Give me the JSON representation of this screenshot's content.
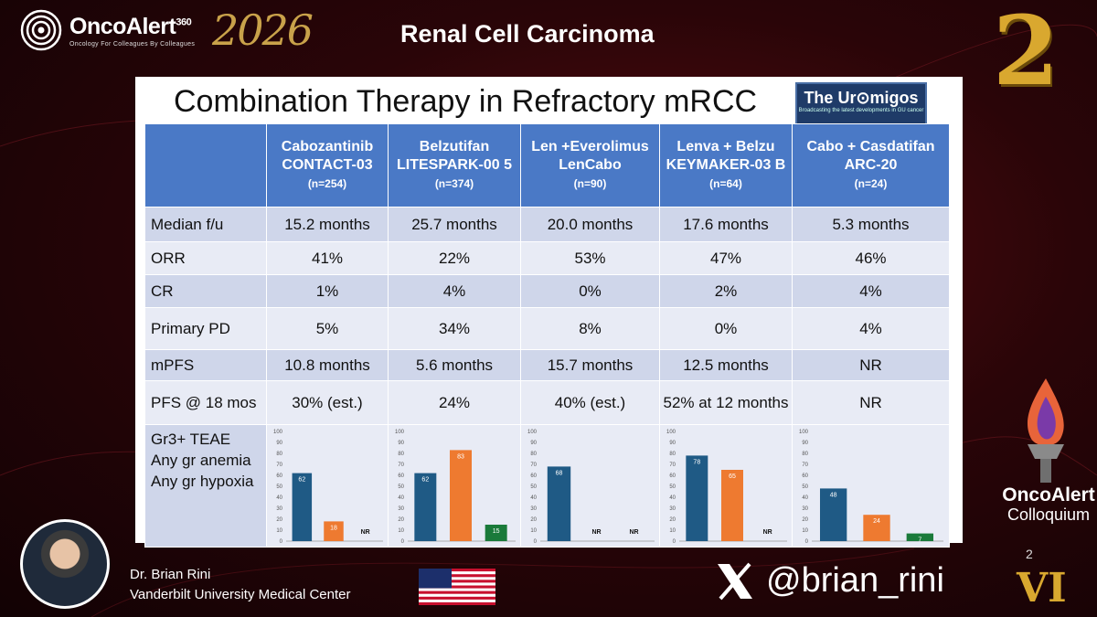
{
  "header": {
    "brand": "OncoAlert",
    "brand_sup": "360",
    "brand_tagline": "Oncology   For Colleagues   By Colleagues",
    "year": "2026",
    "title": "Renal Cell Carcinoma",
    "edition_number": "2"
  },
  "slide": {
    "title": "Combination Therapy in Refractory mRCC",
    "badge_name": "The Ur⊙migos",
    "badge_tagline": "Broadcasting the latest developments in GU cancer",
    "columns": [
      {
        "name": "Cabozantinib CONTACT-03",
        "n": "(n=254)"
      },
      {
        "name": "Belzutifan LITESPARK-00 5",
        "n": "(n=374)"
      },
      {
        "name": "Len +Everolimus LenCabo",
        "n": "(n=90)"
      },
      {
        "name": "Lenva + Belzu KEYMAKER-03 B",
        "n": "(n=64)"
      },
      {
        "name": "Cabo + Casdatifan ARC-20",
        "n": "(n=24)"
      }
    ],
    "rows": [
      {
        "label": "Median f/u",
        "values": [
          "15.2 months",
          "25.7 months",
          "20.0 months",
          "17.6 months",
          "5.3 months"
        ]
      },
      {
        "label": "ORR",
        "values": [
          "41%",
          "22%",
          "53%",
          "47%",
          "46%"
        ]
      },
      {
        "label": "CR",
        "values": [
          "1%",
          "4%",
          "0%",
          "2%",
          "4%"
        ]
      },
      {
        "label": "Primary PD",
        "values": [
          "5%",
          "34%",
          "8%",
          "0%",
          "4%"
        ]
      },
      {
        "label": "mPFS",
        "values": [
          "10.8 months",
          "5.6 months",
          "15.7 months",
          "12.5 months",
          "NR"
        ]
      },
      {
        "label": "PFS @ 18 mos",
        "values": [
          "30% (est.)",
          "24%",
          "40% (est.)",
          "52% at 12 months",
          "NR"
        ]
      }
    ],
    "last_row_label": [
      "Gr3+ TEAE",
      "Any gr anemia",
      "Any gr hypoxia"
    ]
  },
  "chart_data": [
    {
      "type": "bar",
      "categories": [
        "Gr3+ TEAE",
        "Any gr anemia",
        "Any gr hypoxia"
      ],
      "values": [
        62,
        18,
        null
      ],
      "labels": [
        "62",
        "18",
        "NR"
      ],
      "ylim": [
        0,
        100
      ]
    },
    {
      "type": "bar",
      "categories": [
        "Gr3+ TEAE",
        "Any gr anemia",
        "Any gr hypoxia"
      ],
      "values": [
        62,
        83,
        15
      ],
      "labels": [
        "62",
        "83",
        "15"
      ],
      "ylim": [
        0,
        100
      ]
    },
    {
      "type": "bar",
      "categories": [
        "Gr3+ TEAE",
        "Any gr anemia",
        "Any gr hypoxia"
      ],
      "values": [
        68,
        null,
        null
      ],
      "labels": [
        "68",
        "NR",
        "NR"
      ],
      "ylim": [
        0,
        100
      ]
    },
    {
      "type": "bar",
      "categories": [
        "Gr3+ TEAE",
        "Any gr anemia",
        "Any gr hypoxia"
      ],
      "values": [
        78,
        65,
        null
      ],
      "labels": [
        "78",
        "65",
        "NR"
      ],
      "ylim": [
        0,
        100
      ]
    },
    {
      "type": "bar",
      "categories": [
        "Gr3+ TEAE",
        "Any gr anemia",
        "Any gr hypoxia"
      ],
      "values": [
        48,
        24,
        7
      ],
      "labels": [
        "48",
        "24",
        "7"
      ],
      "ylim": [
        0,
        100
      ]
    }
  ],
  "chart_ticks": [
    "0",
    "10",
    "20",
    "30",
    "40",
    "50",
    "60",
    "70",
    "80",
    "90",
    "100"
  ],
  "colors": {
    "bar_teae": "#1f5a85",
    "bar_anemia": "#ee7a30",
    "bar_hypoxia": "#1a7a3a",
    "header_blue": "#4a79c6"
  },
  "footer": {
    "speaker_name": "Dr. Brian Rini",
    "speaker_affiliation": "Vanderbilt University Medical Center",
    "handle": "@brian_rini",
    "colloquium_name": "OncoAlert",
    "colloquium_sub": "Colloquium",
    "edition_small": "2",
    "edition_roman": "VI"
  }
}
